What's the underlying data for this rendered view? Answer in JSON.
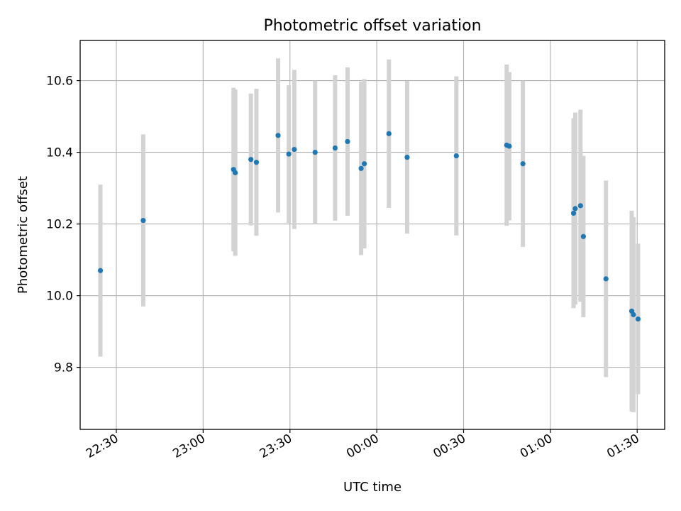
{
  "chart_data": {
    "type": "scatter",
    "title": "Photometric offset variation",
    "xlabel": "UTC time",
    "ylabel": "Photometric offset",
    "x_tick_labels": [
      "22:30",
      "23:00",
      "23:30",
      "00:00",
      "00:30",
      "01:00",
      "01:30"
    ],
    "x_tick_minutes": [
      -90,
      -60,
      -30,
      0,
      30,
      60,
      90
    ],
    "y_ticks": [
      9.8,
      10.0,
      10.2,
      10.4,
      10.6
    ],
    "y_tick_labels": [
      "9.8",
      "10.0",
      "10.2",
      "10.4",
      "10.6"
    ],
    "xlim": [
      -102.5,
      99.5
    ],
    "ylim": [
      9.627,
      10.712
    ],
    "grid": true,
    "colors": {
      "point": "#1f77b4",
      "errorbar": "#d3d3d3"
    },
    "points": [
      {
        "t": -95.5,
        "y": 10.07,
        "err": 0.24
      },
      {
        "t": -80.7,
        "y": 10.21,
        "err": 0.24
      },
      {
        "t": -49.5,
        "y": 10.352,
        "err": 0.228
      },
      {
        "t": -48.9,
        "y": 10.343,
        "err": 0.232
      },
      {
        "t": -43.5,
        "y": 10.38,
        "err": 0.184
      },
      {
        "t": -41.6,
        "y": 10.372,
        "err": 0.205
      },
      {
        "t": -34.1,
        "y": 10.447,
        "err": 0.215
      },
      {
        "t": -30.4,
        "y": 10.395,
        "err": 0.192
      },
      {
        "t": -28.5,
        "y": 10.408,
        "err": 0.222
      },
      {
        "t": -21.3,
        "y": 10.4,
        "err": 0.2
      },
      {
        "t": -14.4,
        "y": 10.412,
        "err": 0.203
      },
      {
        "t": -10.1,
        "y": 10.43,
        "err": 0.207
      },
      {
        "t": -5.4,
        "y": 10.355,
        "err": 0.242
      },
      {
        "t": -4.3,
        "y": 10.368,
        "err": 0.236
      },
      {
        "t": 4.2,
        "y": 10.452,
        "err": 0.207
      },
      {
        "t": 10.5,
        "y": 10.386,
        "err": 0.213
      },
      {
        "t": 27.5,
        "y": 10.39,
        "err": 0.222
      },
      {
        "t": 44.9,
        "y": 10.42,
        "err": 0.225
      },
      {
        "t": 45.8,
        "y": 10.417,
        "err": 0.207
      },
      {
        "t": 50.5,
        "y": 10.368,
        "err": 0.232
      },
      {
        "t": 68.0,
        "y": 10.23,
        "err": 0.265
      },
      {
        "t": 68.6,
        "y": 10.243,
        "err": 0.268
      },
      {
        "t": 70.4,
        "y": 10.251,
        "err": 0.268
      },
      {
        "t": 71.4,
        "y": 10.165,
        "err": 0.225
      },
      {
        "t": 79.2,
        "y": 10.047,
        "err": 0.274
      },
      {
        "t": 88.1,
        "y": 9.957,
        "err": 0.28
      },
      {
        "t": 88.7,
        "y": 9.947,
        "err": 0.272
      },
      {
        "t": 90.3,
        "y": 9.935,
        "err": 0.21
      }
    ]
  }
}
